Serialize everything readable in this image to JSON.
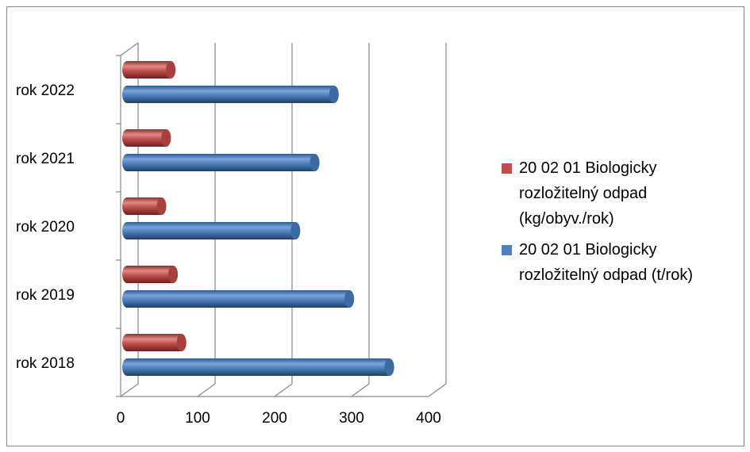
{
  "chart_data": {
    "type": "bar",
    "orientation": "horizontal",
    "three_d": true,
    "bar_shape": "cylinder",
    "categories": [
      "rok 2018",
      "rok 2019",
      "rok 2020",
      "rok 2021",
      "rok 2022"
    ],
    "series": [
      {
        "name": "20 02 01  Biologicky rozložitelný odpad (t/rok)",
        "color": "#4f81bd",
        "values": [
          347,
          295,
          225,
          250,
          275
        ]
      },
      {
        "name": "20 02 01  Biologicky rozložitelný odpad (kg/obyv./rok)",
        "color": "#c0504d",
        "values": [
          77,
          66,
          51,
          57,
          63
        ]
      }
    ],
    "x_ticks": [
      "0",
      "100",
      "200",
      "300",
      "400"
    ],
    "xlim": [
      0,
      400
    ],
    "grid": true,
    "legend_position": "right"
  },
  "legend": {
    "items": [
      {
        "label": "20 02 01  Biologicky rozložitelný odpad (kg/obyv./rok)",
        "color": "#c0504d"
      },
      {
        "label": "20 02 01  Biologicky rozložitelný odpad (t/rok)",
        "color": "#4f81bd"
      }
    ]
  }
}
